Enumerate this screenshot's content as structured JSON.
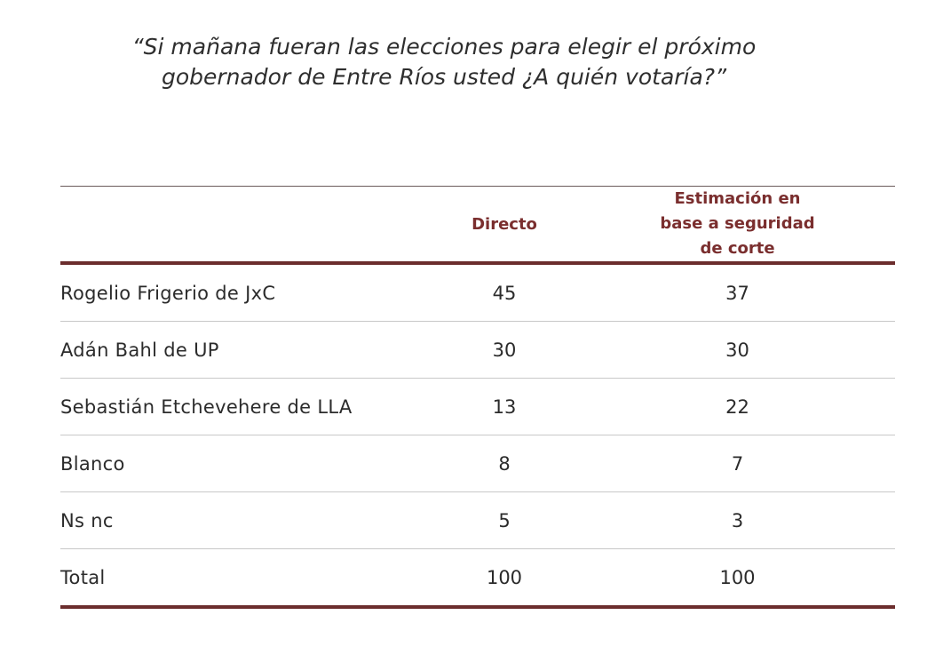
{
  "question": {
    "line1": "“Si mañana fueran las elecciones para elegir el próximo",
    "line2": "gobernador de Entre Ríos usted ¿A quién votaría?”"
  },
  "table": {
    "headers": {
      "label": "",
      "directo": "Directo",
      "estimacion_line1": "Estimación en",
      "estimacion_line2": "base a seguridad",
      "estimacion_line3": "de corte"
    },
    "rows": [
      {
        "label": "Rogelio Frigerio de JxC",
        "directo": "45",
        "estimacion": "37"
      },
      {
        "label": "Adán Bahl de UP",
        "directo": "30",
        "estimacion": "30"
      },
      {
        "label": "Sebastián Etchevehere de LLA",
        "directo": "13",
        "estimacion": "22"
      },
      {
        "label": "Blanco",
        "directo": "8",
        "estimacion": "7"
      },
      {
        "label": "Ns nc",
        "directo": "5",
        "estimacion": "3"
      },
      {
        "label": "Total",
        "directo": "100",
        "estimacion": "100"
      }
    ]
  },
  "colors": {
    "header_text": "#7a2e2e",
    "rule": "#6b2d2d",
    "row_divider": "#c8c8c8"
  }
}
